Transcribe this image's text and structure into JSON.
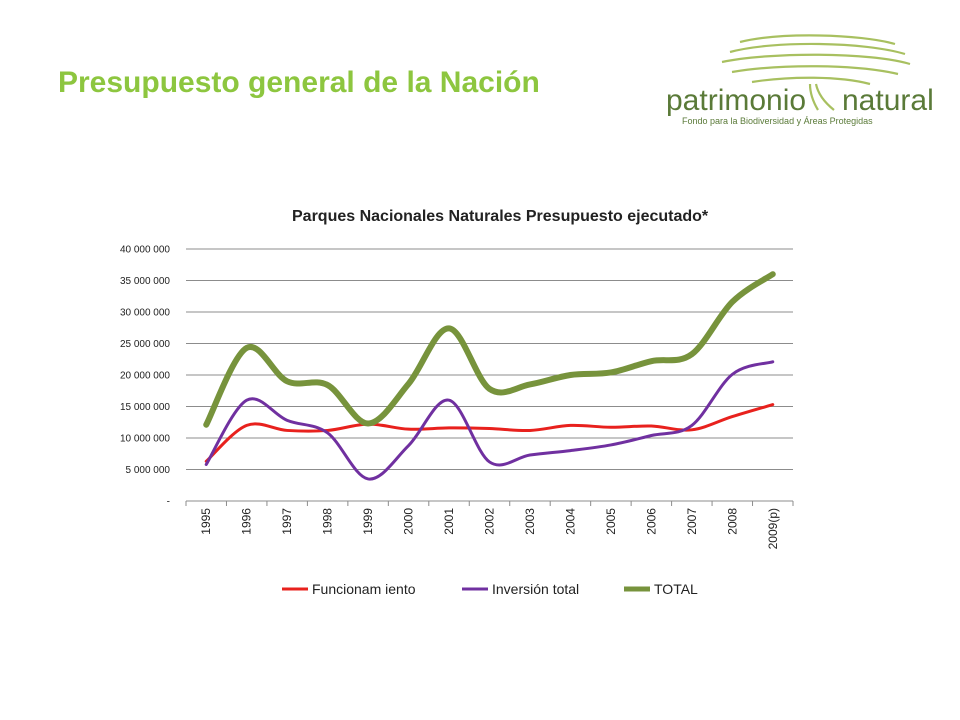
{
  "slide": {
    "title": "Presupuesto general de la Nación"
  },
  "logo": {
    "word_left": "patrimonio",
    "word_right": "natural",
    "tagline": "Fondo para la Biodiversidad y Áreas Protegidas",
    "colors": {
      "tree": "#a8c060",
      "text": "#5a7a38"
    }
  },
  "chart_data": {
    "type": "line",
    "title": "Parques Nacionales Naturales Presupuesto ejecutado*",
    "xlabel": "",
    "ylabel": "",
    "categories": [
      "1995",
      "1996",
      "1997",
      "1998",
      "1999",
      "2000",
      "2001",
      "2002",
      "2003",
      "2004",
      "2005",
      "2006",
      "2007",
      "2008",
      "2009(p)"
    ],
    "ylim": [
      0,
      40000000
    ],
    "yticks": [
      {
        "value": 0,
        "label": "-"
      },
      {
        "value": 5000000,
        "label": "5 000 000"
      },
      {
        "value": 10000000,
        "label": "10 000 000"
      },
      {
        "value": 15000000,
        "label": "15 000 000"
      },
      {
        "value": 20000000,
        "label": "20 000 000"
      },
      {
        "value": 25000000,
        "label": "25 000 000"
      },
      {
        "value": 30000000,
        "label": "30 000 000"
      },
      {
        "value": 35000000,
        "label": "35 000 000"
      },
      {
        "value": 40000000,
        "label": "40 000 000"
      }
    ],
    "grid": true,
    "legend_position": "bottom",
    "series": [
      {
        "name": "Funcionam iento",
        "color": "#e8211d",
        "stroke": 3,
        "values": [
          6300000,
          12000000,
          11200000,
          11200000,
          12200000,
          11400000,
          11600000,
          11500000,
          11200000,
          12000000,
          11700000,
          11900000,
          11300000,
          13400000,
          15300000
        ]
      },
      {
        "name": "Inversión total",
        "color": "#7030a0",
        "stroke": 3,
        "values": [
          5800000,
          16000000,
          12800000,
          10800000,
          3500000,
          8800000,
          16000000,
          6200000,
          7300000,
          8000000,
          8900000,
          10400000,
          12000000,
          20100000,
          22100000
        ]
      },
      {
        "name": "TOTAL",
        "color": "#77933c",
        "stroke": 6,
        "values": [
          12100000,
          24300000,
          19000000,
          18400000,
          12300000,
          18600000,
          27400000,
          17800000,
          18500000,
          20000000,
          20400000,
          22200000,
          23300000,
          31600000,
          36000000
        ]
      }
    ]
  }
}
